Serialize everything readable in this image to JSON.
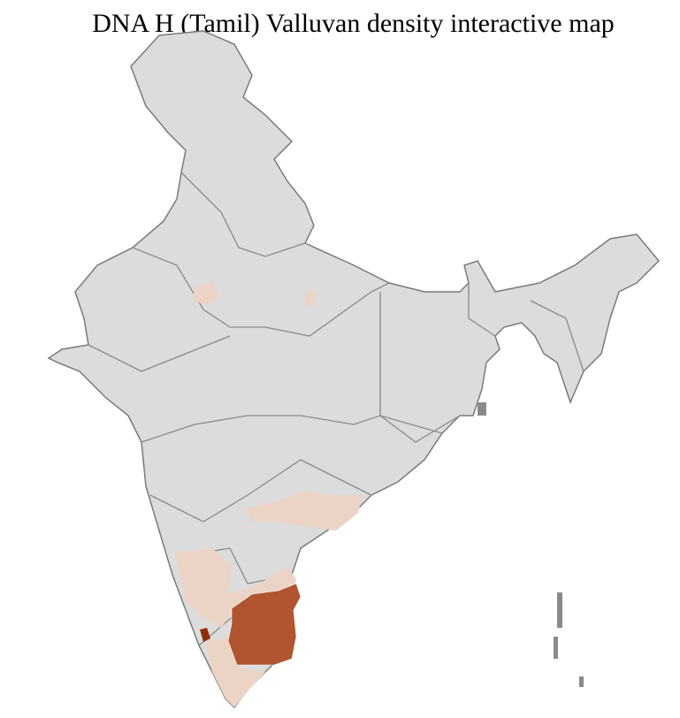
{
  "title": "DNA H (Tamil) Valluvan density interactive map",
  "colors": {
    "no_data": "#dcdcdc",
    "low": "#ebd3c6",
    "high": "#b0552f",
    "highest": "#8c2d0e",
    "district_border": "#ffffff",
    "state_border": "#7a7a7a"
  }
}
